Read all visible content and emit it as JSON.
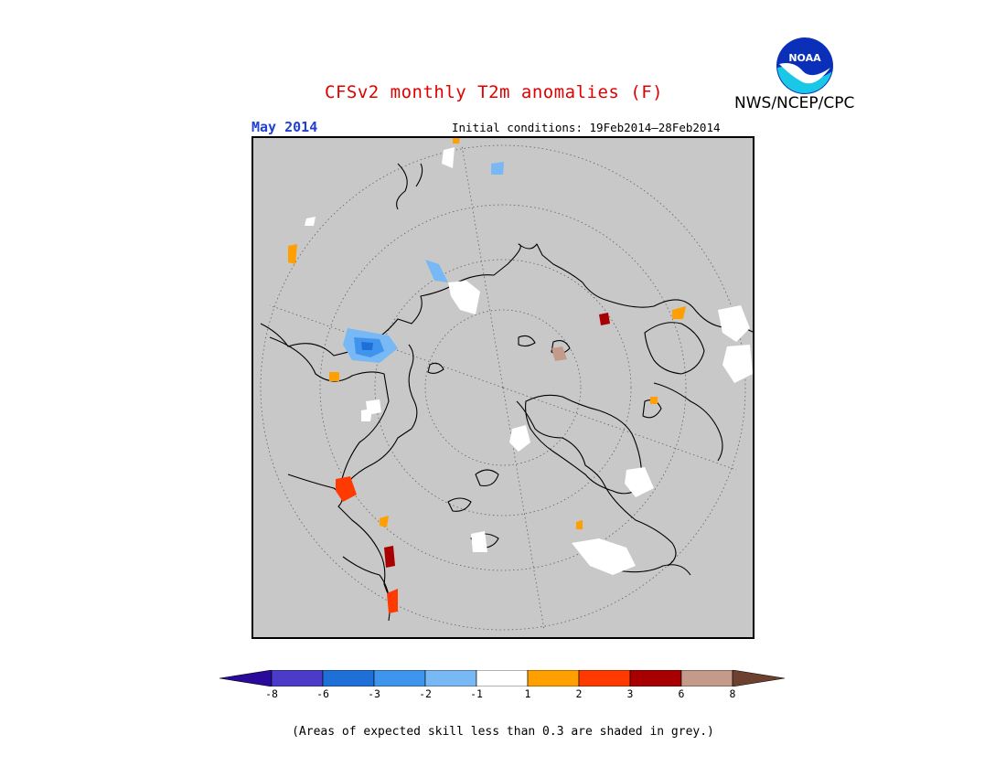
{
  "header": {
    "title": "CFSv2 monthly T2m anomalies (F)",
    "agency": "NWS/NCEP/CPC",
    "valid_month": "May 2014",
    "initial_conditions": "Initial conditions: 19Feb2014–28Feb2014"
  },
  "logo": {
    "text": "NOAA"
  },
  "colors": {
    "title": "#e00000",
    "valid_month": "#2040d0",
    "map_background": "#c8c8c8",
    "land_outline": "#000000",
    "graticule": "#606060"
  },
  "legend": {
    "bins": [
      {
        "label": "<-8",
        "color": "#2a0a9a"
      },
      {
        "label": "-8 to -6",
        "color": "#4a3cc8"
      },
      {
        "label": "-6 to -3",
        "color": "#1f6fd8"
      },
      {
        "label": "-3 to -2",
        "color": "#3f94ee"
      },
      {
        "label": "-2 to -1",
        "color": "#78b8f4"
      },
      {
        "label": "-1 to 1",
        "color": "#ffffff"
      },
      {
        "label": "1 to 2",
        "color": "#ff9f00"
      },
      {
        "label": "2 to 3",
        "color": "#ff3a00"
      },
      {
        "label": "3 to 6",
        "color": "#a80000"
      },
      {
        "label": "6 to 8",
        "color": "#c49a8a"
      },
      {
        "label": ">8",
        "color": "#6e4030"
      }
    ],
    "ticks": [
      "-8",
      "-6",
      "-3",
      "-2",
      "-1",
      "1",
      "2",
      "3",
      "6",
      "8"
    ]
  },
  "footnote": "(Areas of expected skill less than 0.3 are shaded in grey.)"
}
